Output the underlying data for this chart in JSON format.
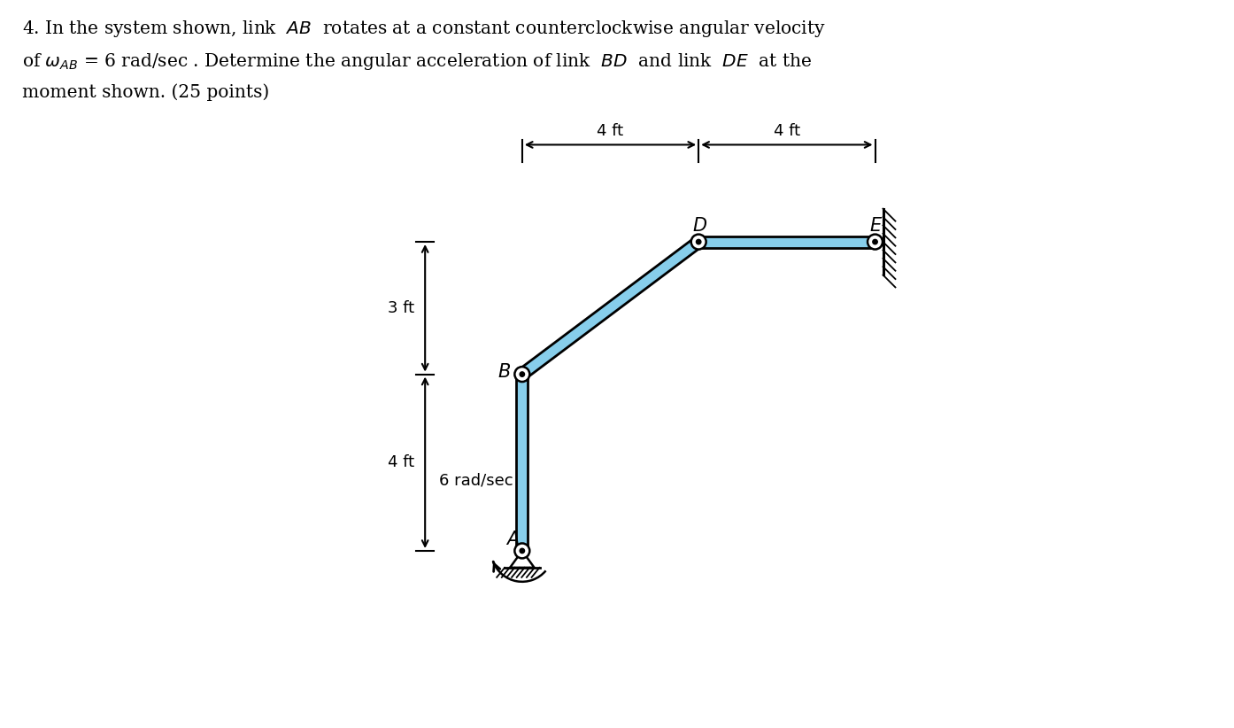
{
  "link_color": "#87CEEB",
  "link_edge_color": "#000000",
  "bg_color": "#ffffff",
  "A": [
    0.0,
    0.0
  ],
  "B": [
    0.0,
    4.0
  ],
  "D": [
    4.0,
    7.0
  ],
  "E": [
    8.0,
    7.0
  ],
  "title_line1": "4. In the system shown, link  $\\mathit{AB}$  rotates at a constant counterclockwise angular velocity",
  "title_line2": "of $\\omega_{AB}$ = 6 rad/sec . Determine the angular acceleration of link  $\\mathit{BD}$  and link  $\\mathit{DE}$  at the",
  "title_line3": "moment shown. (25 points)",
  "label_A": "$\\mathit{A}$",
  "label_B": "$\\mathit{B}$",
  "label_D": "$\\mathit{D}$",
  "label_E": "$\\mathit{E}$",
  "omega_label": "6 rad/sec",
  "dim_3ft": "3 ft",
  "dim_4ft_v": "4 ft",
  "dim_4ft_h1": "4 ft",
  "dim_4ft_h2": "4 ft"
}
